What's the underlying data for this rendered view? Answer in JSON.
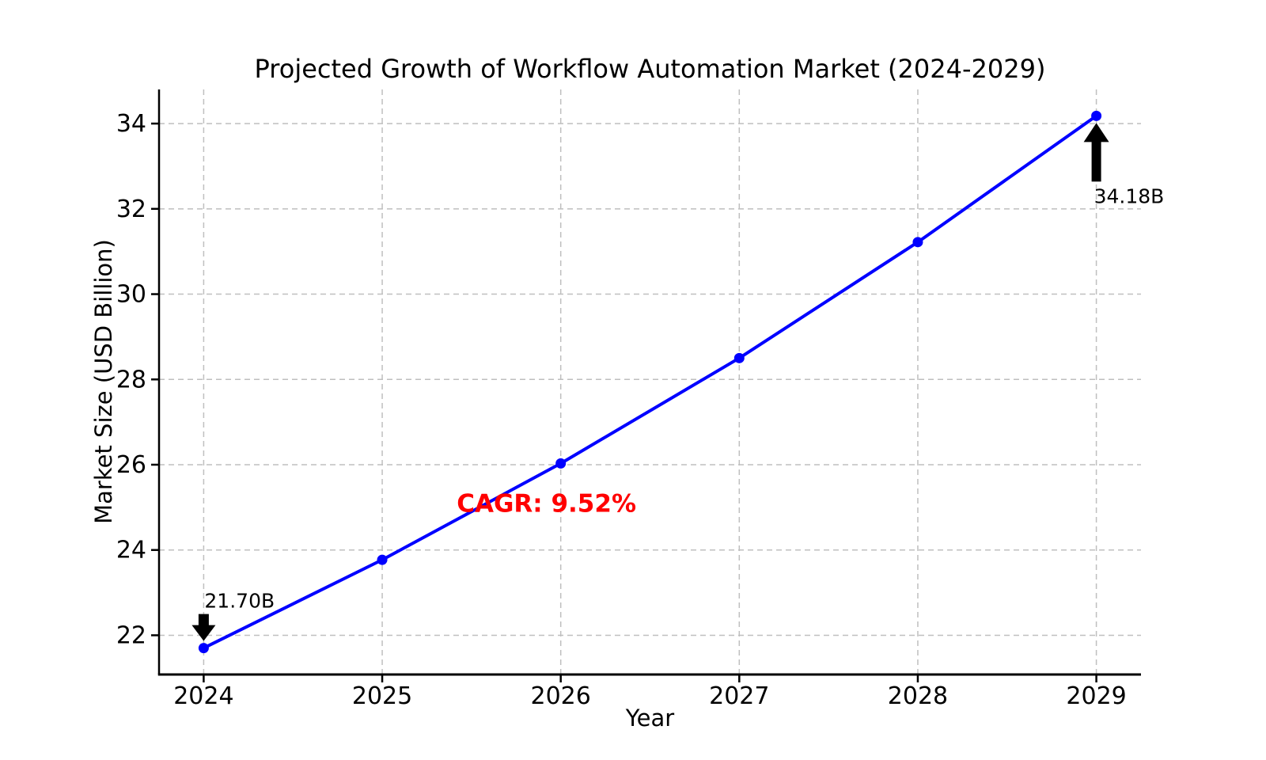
{
  "chart_data": {
    "type": "line",
    "title": "Projected Growth of Workflow Automation Market (2024-2029)",
    "xlabel": "Year",
    "ylabel": "Market Size (USD Billion)",
    "x": [
      2024,
      2025,
      2026,
      2027,
      2028,
      2029
    ],
    "xtick_labels": [
      "2024",
      "2025",
      "2026",
      "2027",
      "2028",
      "2029"
    ],
    "yticks": [
      22,
      24,
      26,
      28,
      30,
      32,
      34
    ],
    "xlim": [
      2023.75,
      2029.25
    ],
    "ylim": [
      21.08,
      34.8
    ],
    "grid": true,
    "grid_style": "dashed",
    "legend": "none",
    "series": [
      {
        "name": "Market Size (USD Billion)",
        "values": [
          21.7,
          23.77,
          26.03,
          28.5,
          31.22,
          34.18
        ],
        "color": "#0000ff",
        "marker": "circle"
      }
    ],
    "annotations": [
      {
        "text": "21.70B",
        "x": 2024,
        "y": 21.7,
        "arrow": "down",
        "color": "#000000",
        "bold": false
      },
      {
        "text": "34.18B",
        "x": 2029,
        "y": 34.18,
        "arrow": "up",
        "color": "#000000",
        "bold": false
      },
      {
        "text": "CAGR: 9.52%",
        "x": 2025.92,
        "y": 25.1,
        "arrow": "none",
        "color": "#ff0000",
        "bold": true
      }
    ],
    "colors": {
      "line": "#0000ff",
      "grid": "#bfbfbf",
      "spine": "#000000",
      "text": "#000000",
      "arrow": "#000000",
      "cagr_red": "#ff0000",
      "background": "#ffffff"
    }
  }
}
